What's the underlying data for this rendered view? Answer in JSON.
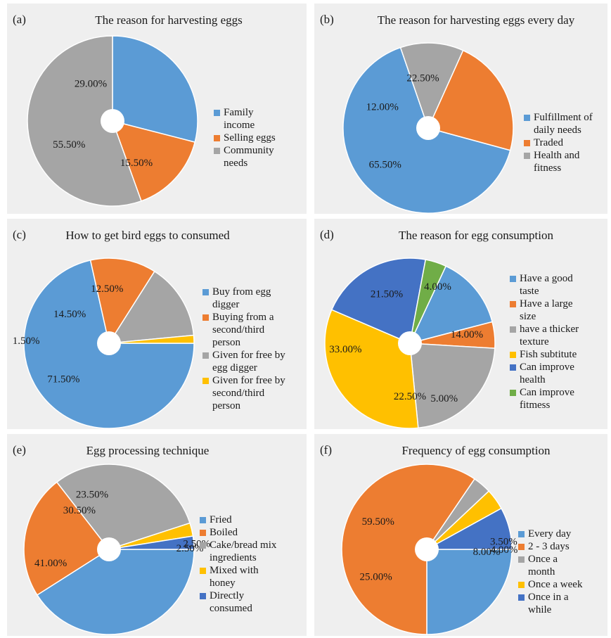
{
  "chart_data": [
    {
      "type": "pie",
      "panel": "(a)",
      "title": "The reason for harvesting eggs",
      "labels": [
        "Family income",
        "Selling eggs",
        "Community needs"
      ],
      "values": [
        29.0,
        15.5,
        55.5
      ],
      "value_labels": [
        "29.00%",
        "15.50%",
        "55.50%"
      ],
      "colors": [
        "#5b9bd5",
        "#ed7d31",
        "#a5a5a5"
      ],
      "legend": [
        "Family\nincome",
        "Selling eggs",
        "Community\nneeds"
      ]
    },
    {
      "type": "pie",
      "panel": "(b)",
      "title": "The reason for harvesting eggs every day",
      "labels": [
        "Fulfillment of daily needs",
        "Traded",
        "Health and fitness"
      ],
      "values": [
        65.5,
        22.5,
        12.0
      ],
      "value_labels": [
        "65.50%",
        "22.50%",
        "12.00%"
      ],
      "colors": [
        "#5b9bd5",
        "#ed7d31",
        "#a5a5a5"
      ],
      "legend": [
        "Fulfillment of\ndaily needs",
        "Traded",
        "Health and\nfitness"
      ]
    },
    {
      "type": "pie",
      "panel": "(c)",
      "title": "How to get bird eggs to consumed",
      "labels": [
        "Buy from egg digger",
        "Buying from a second/third person",
        "Given for free by egg digger",
        "Given for free by second/third person"
      ],
      "values": [
        71.5,
        12.5,
        14.5,
        1.5
      ],
      "value_labels": [
        "71.50%",
        "12.50%",
        "14.50%",
        "1.50%"
      ],
      "colors": [
        "#5b9bd5",
        "#ed7d31",
        "#a5a5a5",
        "#ffc000"
      ],
      "legend": [
        "Buy from egg\ndigger",
        "Buying from a\nsecond/third\nperson",
        "Given for free by\negg digger",
        "Given for free by\nsecond/third\nperson"
      ]
    },
    {
      "type": "pie",
      "panel": "(d)",
      "title": "The reason for egg consumption",
      "labels": [
        "Have a good taste",
        "Have a large size",
        "have a thicker texture",
        "Fish subtitute",
        "Can improve health",
        "Can improve fitmess"
      ],
      "values": [
        14.0,
        5.0,
        22.5,
        33.0,
        21.5,
        4.0
      ],
      "value_labels": [
        "14.00%",
        "5.00%",
        "22.50%",
        "33.00%",
        "21.50%",
        "4.00%"
      ],
      "colors": [
        "#5b9bd5",
        "#ed7d31",
        "#a5a5a5",
        "#ffc000",
        "#4472c4",
        "#70ad47"
      ],
      "legend": [
        "Have a good\ntaste",
        "Have a large\nsize",
        "have a thicker\ntexture",
        "Fish subtitute",
        "Can improve\nhealth",
        "Can improve\nfitmess"
      ]
    },
    {
      "type": "pie",
      "panel": "(e)",
      "title": "Egg processing technique",
      "labels": [
        "Fried",
        "Boiled",
        "Cake/bread mix ingredients",
        "Mixed with honey",
        "Directly consumed"
      ],
      "values": [
        41.0,
        23.5,
        30.5,
        2.5,
        2.5
      ],
      "value_labels": [
        "41.00%",
        "23.50%",
        "30.50%",
        "2.50%",
        "2.50%"
      ],
      "colors": [
        "#5b9bd5",
        "#ed7d31",
        "#a5a5a5",
        "#ffc000",
        "#4472c4"
      ],
      "legend": [
        "Fried",
        "Boiled",
        "Cake/bread mix\ningredients",
        "Mixed with\nhoney",
        "Directly\nconsumed"
      ]
    },
    {
      "type": "pie",
      "panel": "(f)",
      "title": "Frequency of egg consumption",
      "labels": [
        "Every day",
        "2 - 3 days",
        "Once a month",
        "Once a week",
        "Once in a while"
      ],
      "values": [
        25.0,
        59.5,
        3.5,
        4.0,
        8.0
      ],
      "value_labels": [
        "25.00%",
        "59.50%",
        "3.50%",
        "4.00%",
        "8.00%"
      ],
      "colors": [
        "#5b9bd5",
        "#ed7d31",
        "#a5a5a5",
        "#ffc000",
        "#4472c4"
      ],
      "legend": [
        "Every day",
        "2 - 3 days",
        "Once a\nmonth",
        "Once a week",
        "Once in a\nwhile"
      ]
    }
  ]
}
